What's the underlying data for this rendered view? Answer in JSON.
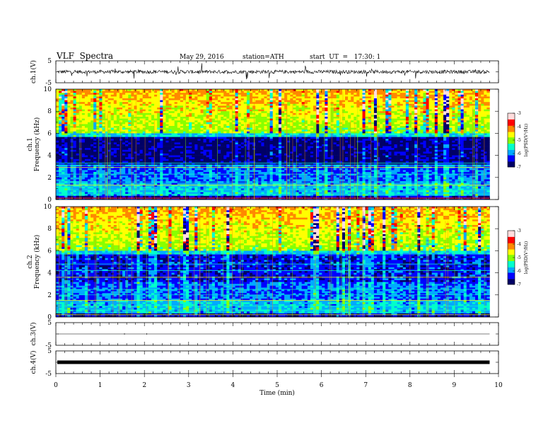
{
  "header": {
    "title": "VLF  Spectra",
    "date": "May 29, 2016",
    "station": "station=ATH",
    "start": "start  UT  =   17:30: 1"
  },
  "chart_data": [
    {
      "type": "line",
      "panel": "ch1",
      "ylabel": "ch.1(V)",
      "ylim": [
        -5,
        5
      ],
      "yticks": [
        "5",
        "-5"
      ],
      "xlim": [
        0,
        10
      ],
      "description_values": {
        "baseline": 0,
        "noise_amplitude": 0.8,
        "spikes": true
      }
    },
    {
      "type": "heatmap",
      "panel": "ch1-spectrogram",
      "ylabel": "ch.1\nFrequency  (kHz)",
      "ylim": [
        0,
        10
      ],
      "yticks": [
        "0",
        "2",
        "4",
        "6",
        "8",
        "10"
      ],
      "xlim": [
        0,
        9.8
      ],
      "colorbar": {
        "label": "log(PSD(V²/Hz)",
        "range": [
          -7,
          -3
        ],
        "ticks": [
          "-3",
          "-4",
          "-5",
          "-6",
          "-7"
        ]
      }
    },
    {
      "type": "heatmap",
      "panel": "ch2-spectrogram",
      "ylabel": "ch.2\nFrequency  (kHz)",
      "ylim": [
        0,
        10
      ],
      "yticks": [
        "0",
        "2",
        "4",
        "6",
        "8",
        "10"
      ],
      "xlim": [
        0,
        9.8
      ],
      "colorbar": {
        "label": "log(PSD(V²/Hz)",
        "range": [
          -7,
          -3
        ],
        "ticks": [
          "-3",
          "-4",
          "-5",
          "-6",
          "-7"
        ]
      }
    },
    {
      "type": "line",
      "panel": "ch3",
      "ylabel": "ch.3(V)",
      "ylim": [
        -5,
        5
      ],
      "yticks": [
        "5",
        "-5"
      ],
      "xlim": [
        0,
        9.8
      ],
      "description_values": {
        "baseline": 0
      }
    },
    {
      "type": "line",
      "panel": "ch4",
      "ylabel": "ch.4(V)",
      "ylim": [
        -5,
        5
      ],
      "yticks": [
        "5",
        "-5"
      ],
      "xlim": [
        0,
        9.8
      ],
      "description_values": {
        "baseline": 0
      }
    }
  ],
  "xaxis": {
    "label": "Time  (min)",
    "ticks": [
      "0",
      "1",
      "2",
      "3",
      "4",
      "5",
      "6",
      "7",
      "8",
      "9",
      "10"
    ]
  },
  "colormap": [
    "#000066",
    "#0000ff",
    "#00aaff",
    "#00ffcc",
    "#88ff00",
    "#ffff00",
    "#ff8800",
    "#ff0000",
    "#ffdddd"
  ]
}
